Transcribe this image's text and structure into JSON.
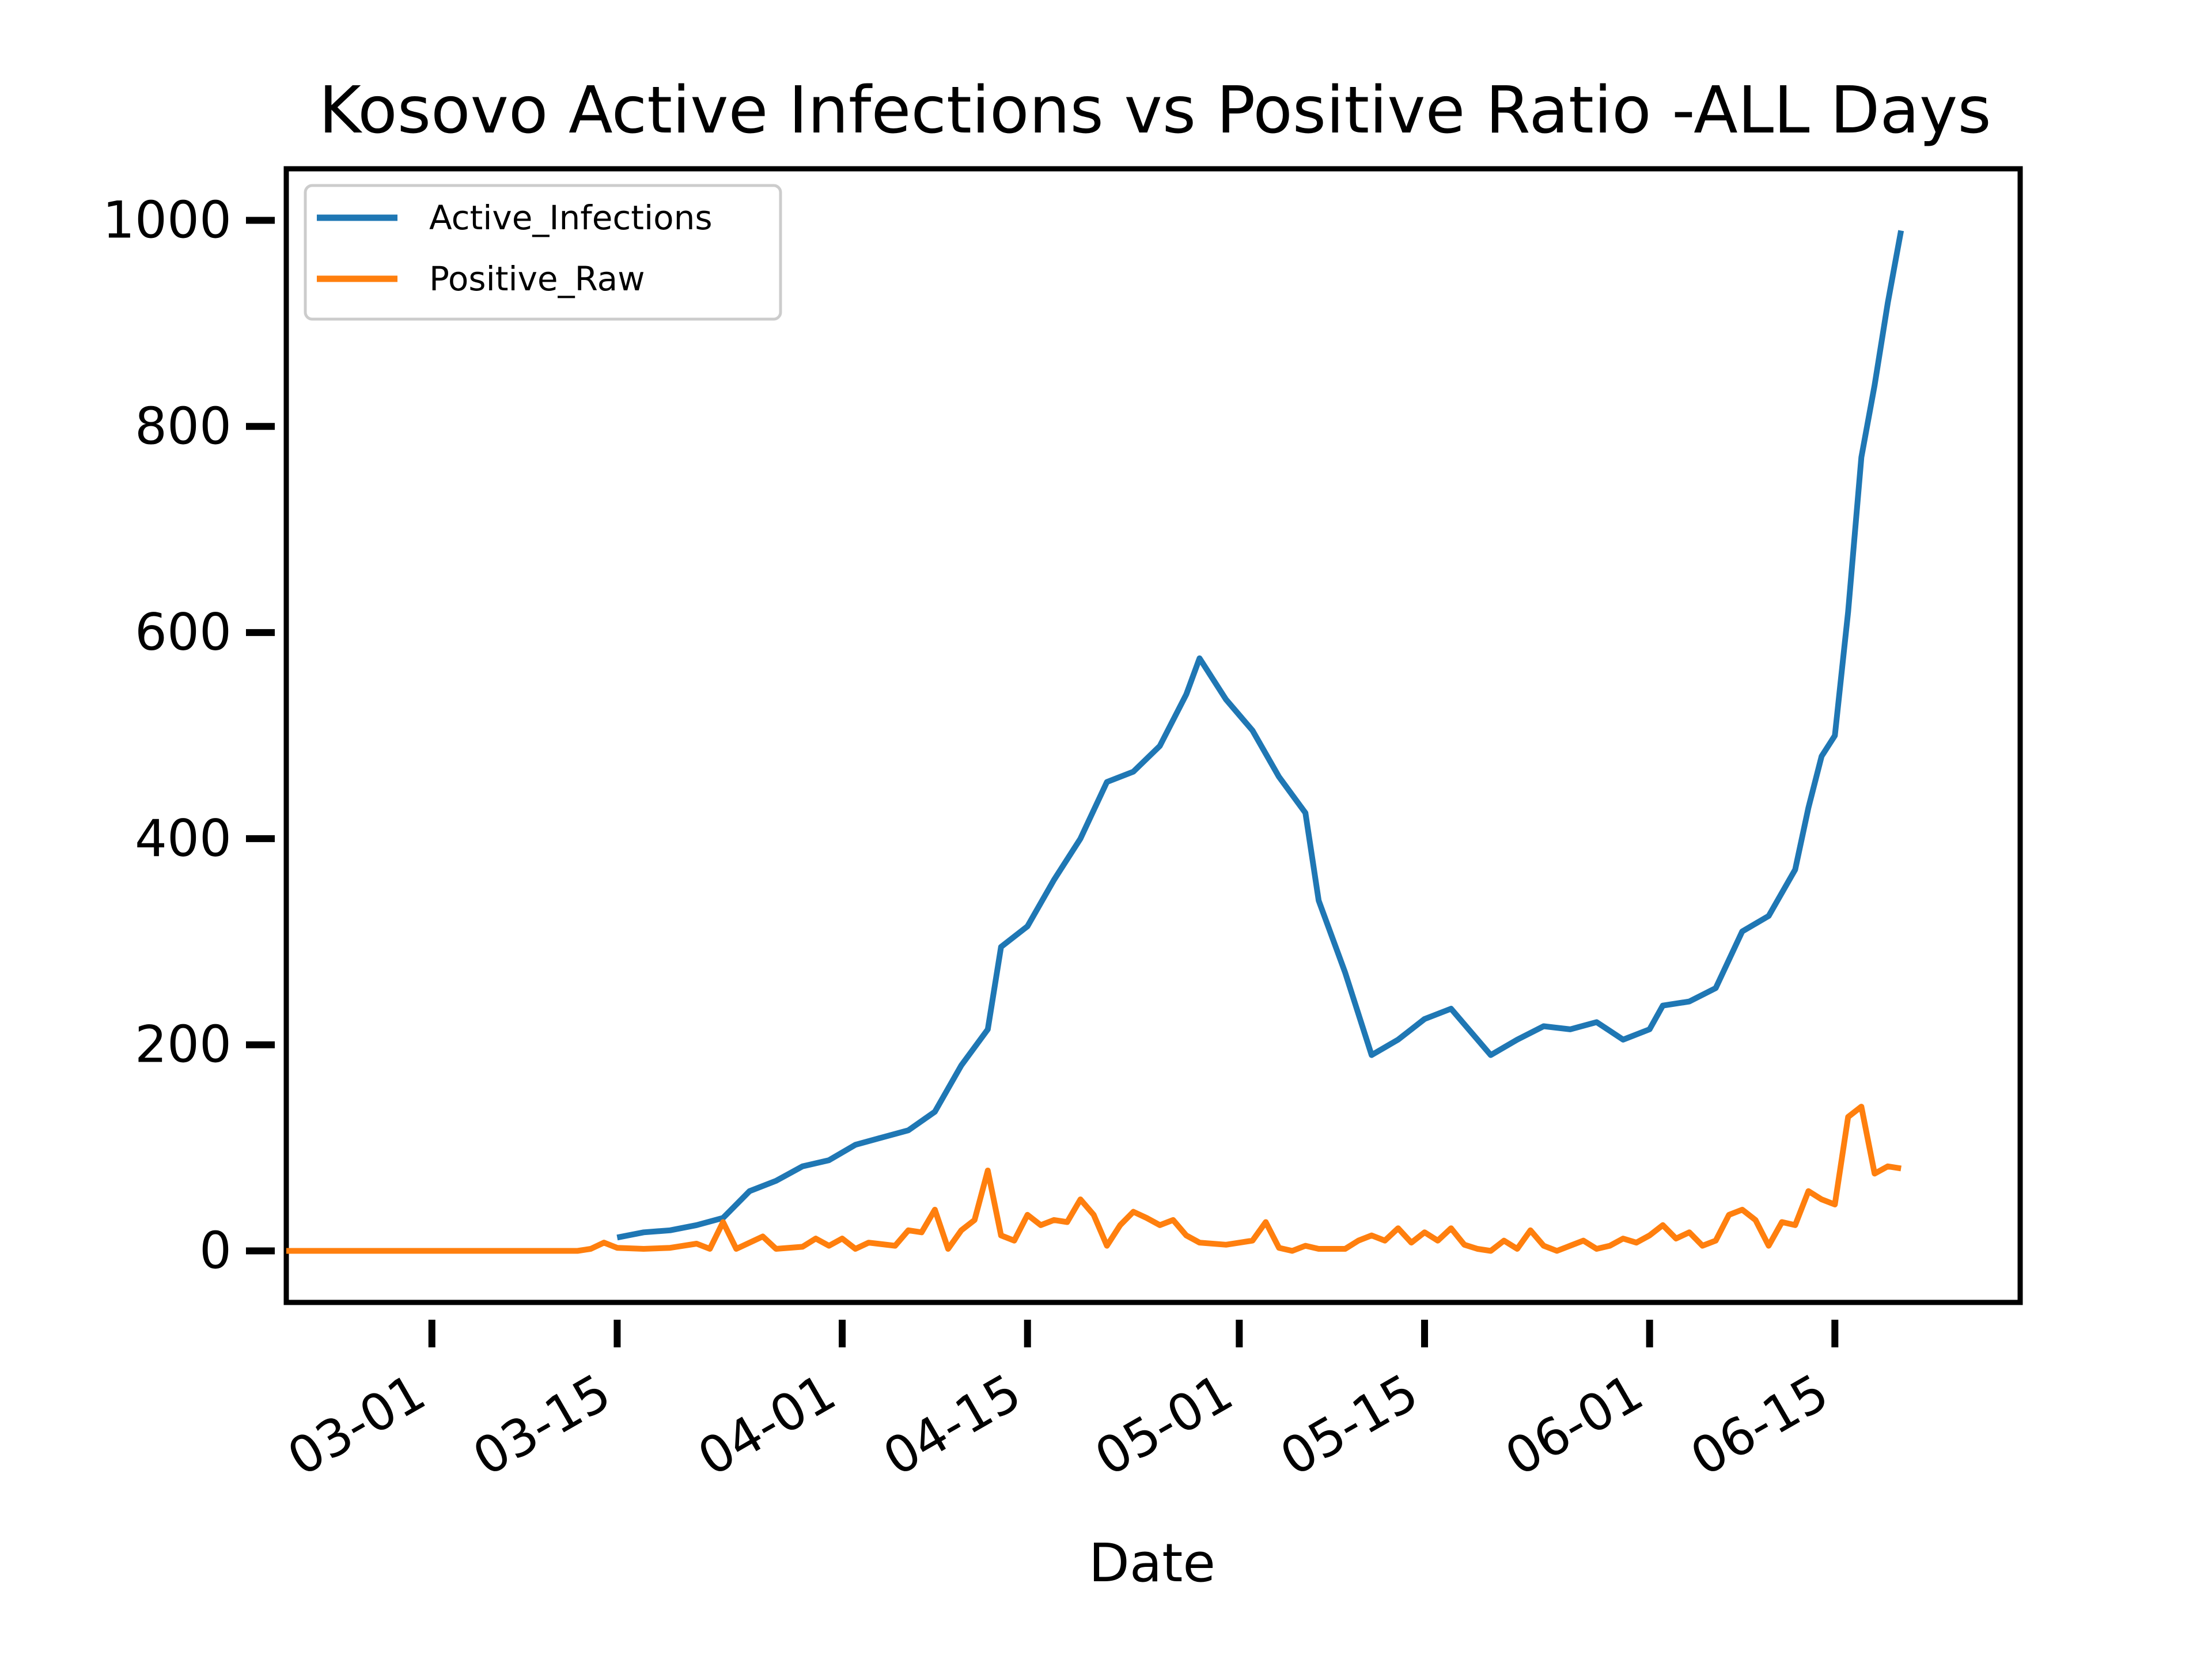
{
  "chart_data": {
    "type": "line",
    "title": "Kosovo Active Infections vs Positive Ratio -ALL Days",
    "xlabel": "Date",
    "ylabel": "",
    "xlim": [
      "2020-02-19",
      "2020-06-29"
    ],
    "ylim": [
      -50,
      1050
    ],
    "yticks": [
      0,
      200,
      400,
      600,
      800,
      1000
    ],
    "xticks": [
      {
        "date": "2020-03-01",
        "label": "03-01"
      },
      {
        "date": "2020-03-15",
        "label": "03-15"
      },
      {
        "date": "2020-04-01",
        "label": "04-01"
      },
      {
        "date": "2020-04-15",
        "label": "04-15"
      },
      {
        "date": "2020-05-01",
        "label": "05-01"
      },
      {
        "date": "2020-05-15",
        "label": "05-15"
      },
      {
        "date": "2020-06-01",
        "label": "06-01"
      },
      {
        "date": "2020-06-15",
        "label": "06-15"
      }
    ],
    "grid": false,
    "legend_position": "top-left",
    "series": [
      {
        "name": "Active_Infections",
        "color": "#1f77b4",
        "points": [
          [
            "2020-03-15",
            13
          ],
          [
            "2020-03-17",
            18
          ],
          [
            "2020-03-19",
            20
          ],
          [
            "2020-03-21",
            25
          ],
          [
            "2020-03-23",
            32
          ],
          [
            "2020-03-25",
            58
          ],
          [
            "2020-03-27",
            68
          ],
          [
            "2020-03-29",
            82
          ],
          [
            "2020-03-31",
            88
          ],
          [
            "2020-04-02",
            103
          ],
          [
            "2020-04-04",
            110
          ],
          [
            "2020-04-06",
            117
          ],
          [
            "2020-04-08",
            135
          ],
          [
            "2020-04-10",
            180
          ],
          [
            "2020-04-12",
            215
          ],
          [
            "2020-04-13",
            295
          ],
          [
            "2020-04-15",
            315
          ],
          [
            "2020-04-17",
            360
          ],
          [
            "2020-04-19",
            400
          ],
          [
            "2020-04-21",
            455
          ],
          [
            "2020-04-23",
            465
          ],
          [
            "2020-04-25",
            490
          ],
          [
            "2020-04-27",
            540
          ],
          [
            "2020-04-28",
            575
          ],
          [
            "2020-04-30",
            535
          ],
          [
            "2020-05-02",
            505
          ],
          [
            "2020-05-04",
            460
          ],
          [
            "2020-05-06",
            425
          ],
          [
            "2020-05-07",
            340
          ],
          [
            "2020-05-09",
            270
          ],
          [
            "2020-05-11",
            190
          ],
          [
            "2020-05-13",
            205
          ],
          [
            "2020-05-15",
            225
          ],
          [
            "2020-05-17",
            235
          ],
          [
            "2020-05-19",
            205
          ],
          [
            "2020-05-20",
            190
          ],
          [
            "2020-05-22",
            205
          ],
          [
            "2020-05-24",
            218
          ],
          [
            "2020-05-26",
            215
          ],
          [
            "2020-05-28",
            222
          ],
          [
            "2020-05-30",
            205
          ],
          [
            "2020-06-01",
            215
          ],
          [
            "2020-06-02",
            238
          ],
          [
            "2020-06-04",
            242
          ],
          [
            "2020-06-06",
            255
          ],
          [
            "2020-06-08",
            310
          ],
          [
            "2020-06-10",
            325
          ],
          [
            "2020-06-12",
            370
          ],
          [
            "2020-06-13",
            430
          ],
          [
            "2020-06-14",
            480
          ],
          [
            "2020-06-15",
            500
          ],
          [
            "2020-06-16",
            620
          ],
          [
            "2020-06-17",
            770
          ],
          [
            "2020-06-18",
            840
          ],
          [
            "2020-06-19",
            920
          ],
          [
            "2020-06-20",
            990
          ]
        ]
      },
      {
        "name": "Positive_Raw",
        "color": "#ff7f0e",
        "points": [
          [
            "2020-02-19",
            0
          ],
          [
            "2020-02-21",
            0
          ],
          [
            "2020-02-23",
            0
          ],
          [
            "2020-02-25",
            0
          ],
          [
            "2020-02-27",
            0
          ],
          [
            "2020-02-29",
            0
          ],
          [
            "2020-03-02",
            0
          ],
          [
            "2020-03-04",
            0
          ],
          [
            "2020-03-06",
            0
          ],
          [
            "2020-03-08",
            0
          ],
          [
            "2020-03-10",
            0
          ],
          [
            "2020-03-12",
            0
          ],
          [
            "2020-03-13",
            2
          ],
          [
            "2020-03-14",
            8
          ],
          [
            "2020-03-15",
            3
          ],
          [
            "2020-03-17",
            2
          ],
          [
            "2020-03-19",
            3
          ],
          [
            "2020-03-21",
            7
          ],
          [
            "2020-03-22",
            2
          ],
          [
            "2020-03-23",
            28
          ],
          [
            "2020-03-24",
            2
          ],
          [
            "2020-03-26",
            14
          ],
          [
            "2020-03-27",
            2
          ],
          [
            "2020-03-29",
            4
          ],
          [
            "2020-03-30",
            12
          ],
          [
            "2020-03-31",
            5
          ],
          [
            "2020-04-01",
            12
          ],
          [
            "2020-04-02",
            2
          ],
          [
            "2020-04-03",
            8
          ],
          [
            "2020-04-05",
            5
          ],
          [
            "2020-04-06",
            20
          ],
          [
            "2020-04-07",
            18
          ],
          [
            "2020-04-08",
            40
          ],
          [
            "2020-04-09",
            2
          ],
          [
            "2020-04-10",
            20
          ],
          [
            "2020-04-11",
            30
          ],
          [
            "2020-04-12",
            78
          ],
          [
            "2020-04-13",
            15
          ],
          [
            "2020-04-14",
            10
          ],
          [
            "2020-04-15",
            35
          ],
          [
            "2020-04-16",
            25
          ],
          [
            "2020-04-17",
            30
          ],
          [
            "2020-04-18",
            28
          ],
          [
            "2020-04-19",
            50
          ],
          [
            "2020-04-20",
            35
          ],
          [
            "2020-04-21",
            5
          ],
          [
            "2020-04-22",
            25
          ],
          [
            "2020-04-23",
            38
          ],
          [
            "2020-04-24",
            32
          ],
          [
            "2020-04-25",
            25
          ],
          [
            "2020-04-26",
            30
          ],
          [
            "2020-04-27",
            15
          ],
          [
            "2020-04-28",
            8
          ],
          [
            "2020-04-30",
            6
          ],
          [
            "2020-05-02",
            10
          ],
          [
            "2020-05-03",
            28
          ],
          [
            "2020-05-04",
            3
          ],
          [
            "2020-05-05",
            0
          ],
          [
            "2020-05-06",
            5
          ],
          [
            "2020-05-07",
            2
          ],
          [
            "2020-05-09",
            2
          ],
          [
            "2020-05-10",
            10
          ],
          [
            "2020-05-11",
            15
          ],
          [
            "2020-05-12",
            10
          ],
          [
            "2020-05-13",
            22
          ],
          [
            "2020-05-14",
            8
          ],
          [
            "2020-05-15",
            18
          ],
          [
            "2020-05-16",
            10
          ],
          [
            "2020-05-17",
            22
          ],
          [
            "2020-05-18",
            6
          ],
          [
            "2020-05-19",
            2
          ],
          [
            "2020-05-20",
            0
          ],
          [
            "2020-05-21",
            10
          ],
          [
            "2020-05-22",
            2
          ],
          [
            "2020-05-23",
            20
          ],
          [
            "2020-05-24",
            5
          ],
          [
            "2020-05-25",
            0
          ],
          [
            "2020-05-26",
            5
          ],
          [
            "2020-05-27",
            10
          ],
          [
            "2020-05-28",
            2
          ],
          [
            "2020-05-29",
            5
          ],
          [
            "2020-05-30",
            12
          ],
          [
            "2020-05-31",
            8
          ],
          [
            "2020-06-01",
            15
          ],
          [
            "2020-06-02",
            25
          ],
          [
            "2020-06-03",
            12
          ],
          [
            "2020-06-04",
            18
          ],
          [
            "2020-06-05",
            5
          ],
          [
            "2020-06-06",
            10
          ],
          [
            "2020-06-07",
            35
          ],
          [
            "2020-06-08",
            40
          ],
          [
            "2020-06-09",
            30
          ],
          [
            "2020-06-10",
            5
          ],
          [
            "2020-06-11",
            28
          ],
          [
            "2020-06-12",
            25
          ],
          [
            "2020-06-13",
            58
          ],
          [
            "2020-06-14",
            50
          ],
          [
            "2020-06-15",
            45
          ],
          [
            "2020-06-16",
            130
          ],
          [
            "2020-06-17",
            140
          ],
          [
            "2020-06-18",
            75
          ],
          [
            "2020-06-19",
            82
          ],
          [
            "2020-06-20",
            80
          ]
        ]
      }
    ]
  }
}
